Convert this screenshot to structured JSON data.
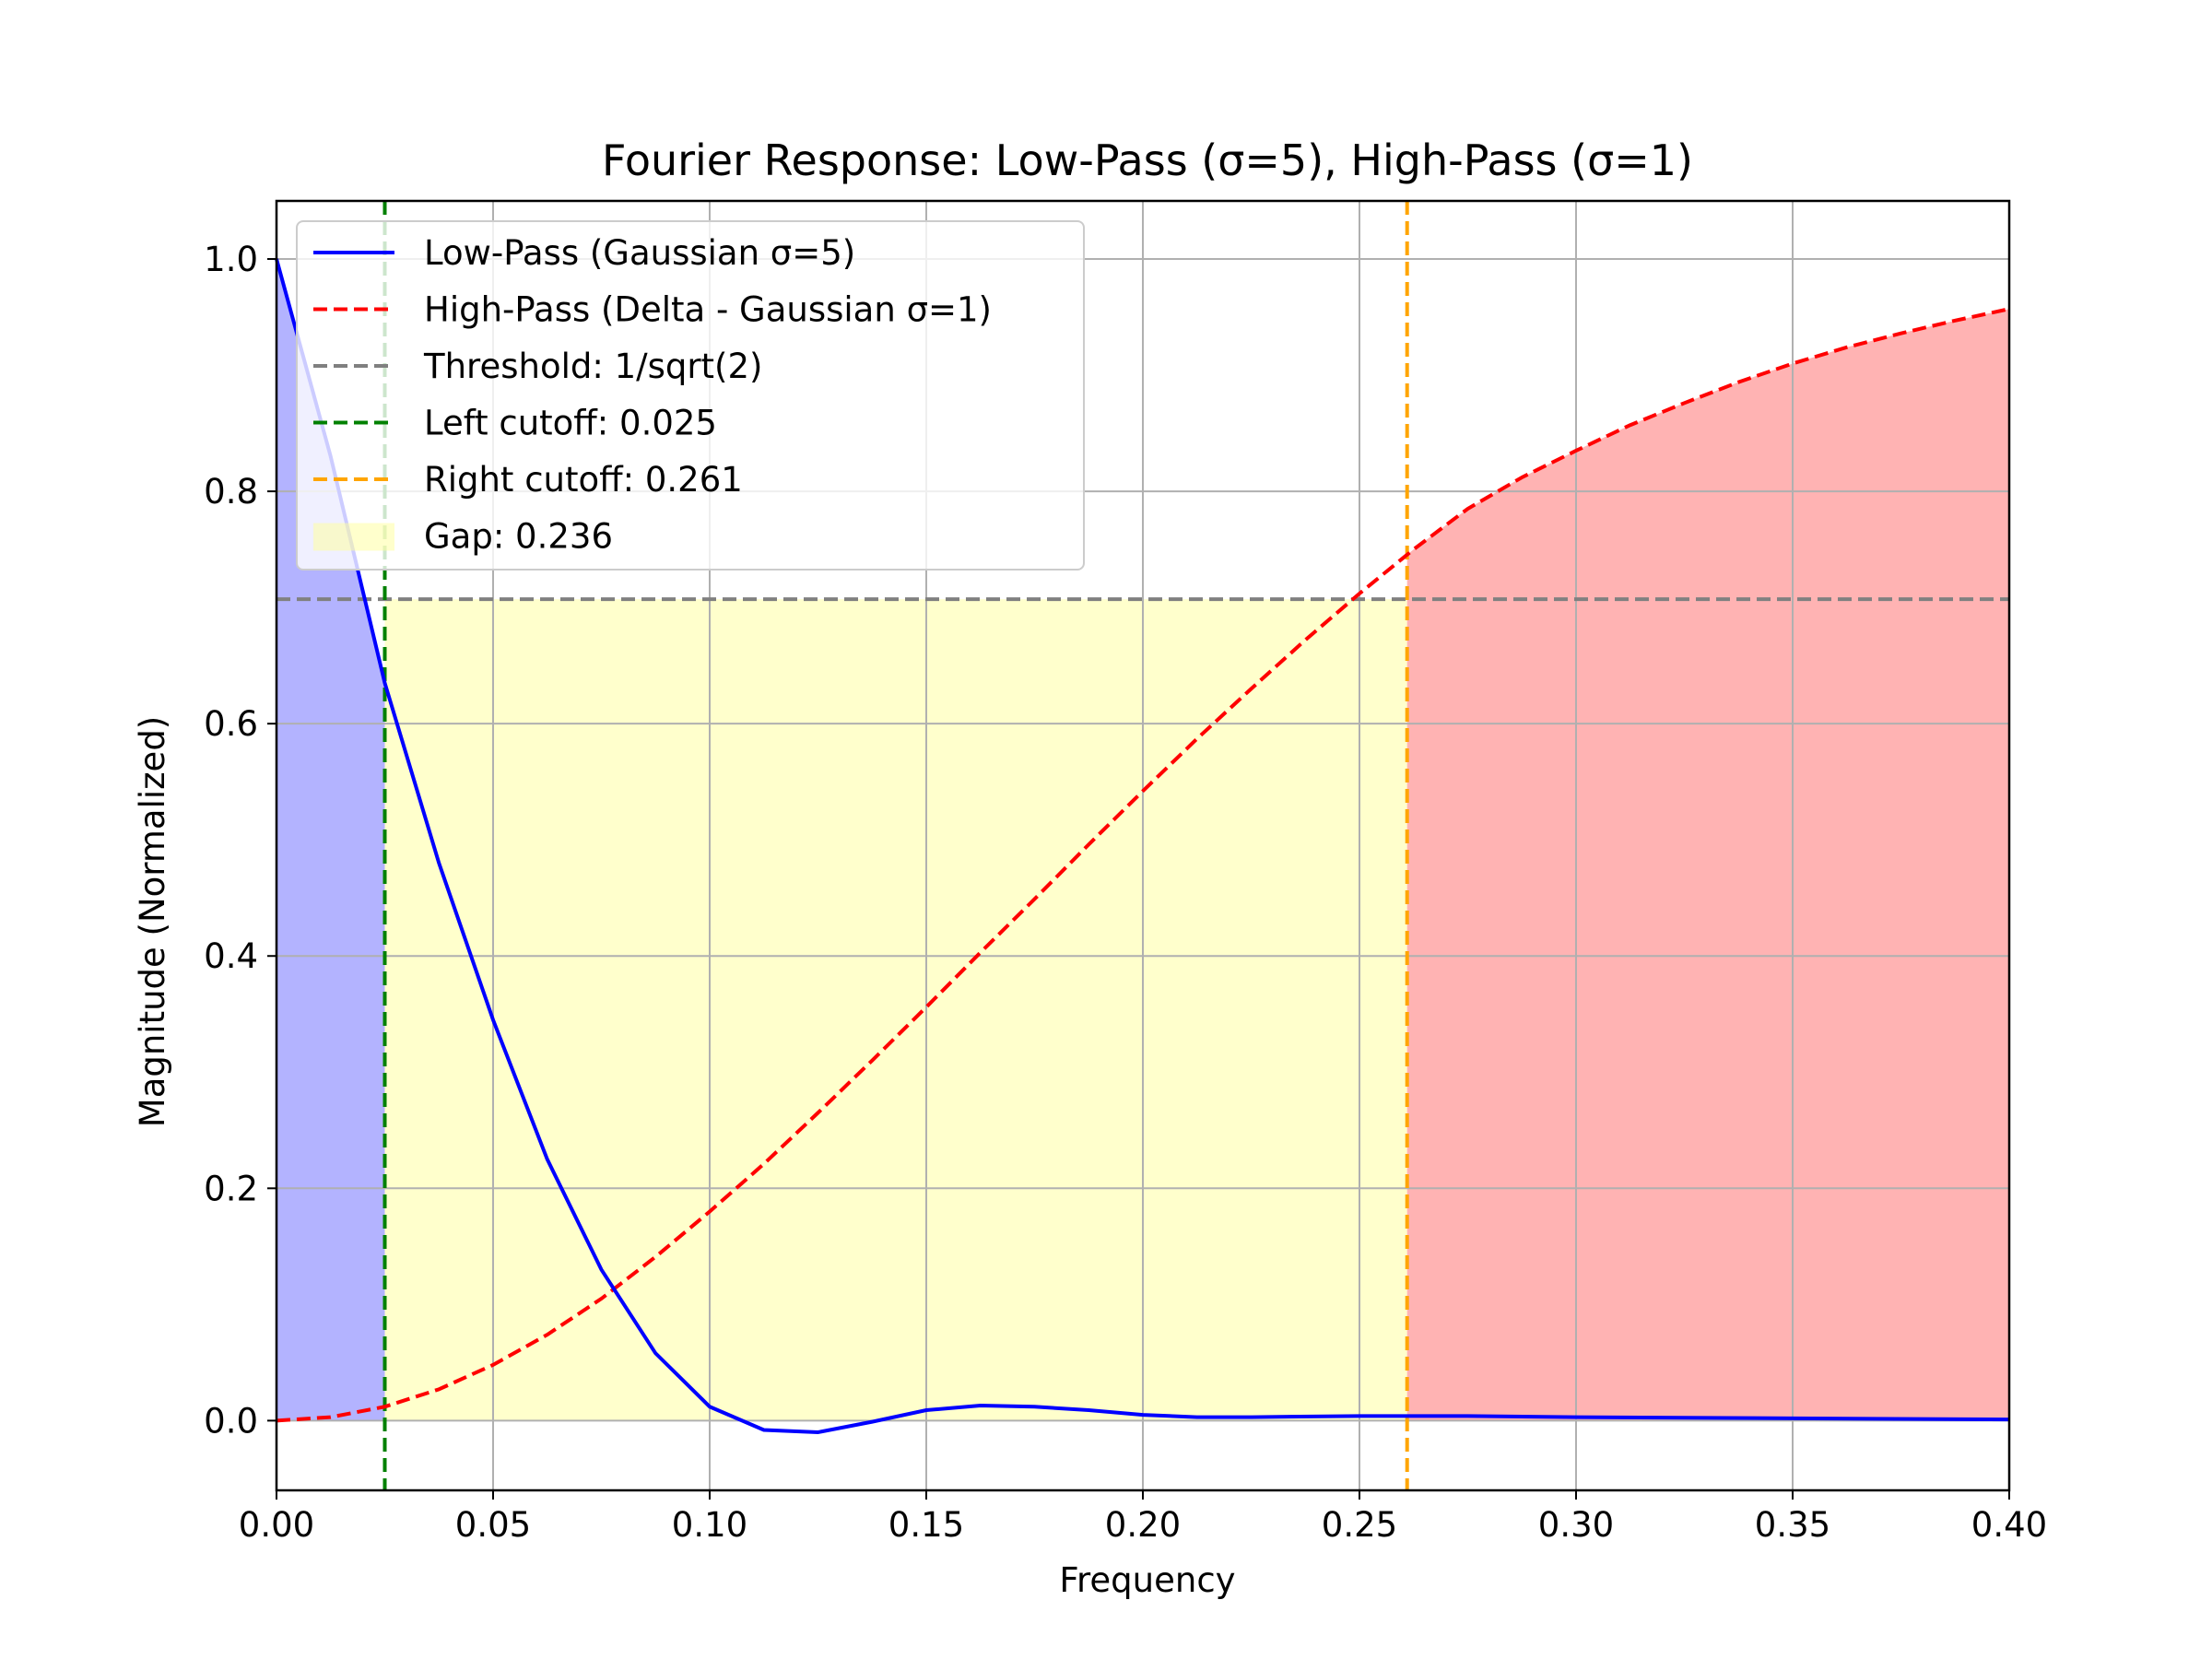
{
  "chart_data": {
    "type": "line",
    "title": "Fourier Response: Low-Pass (σ=5), High-Pass (σ=1)",
    "xlabel": "Frequency",
    "ylabel": "Magnitude (Normalized)",
    "xlim": [
      0.0,
      0.4
    ],
    "ylim": [
      -0.06,
      1.05
    ],
    "x_ticks": [
      "0.00",
      "0.05",
      "0.10",
      "0.15",
      "0.20",
      "0.25",
      "0.30",
      "0.35",
      "0.40"
    ],
    "y_ticks": [
      "0.0",
      "0.2",
      "0.4",
      "0.6",
      "0.8",
      "1.0"
    ],
    "grid": true,
    "legend_placement": "upper-left",
    "series": [
      {
        "name": "Low-Pass (Gaussian σ=5)",
        "style": "solid",
        "color": "#0000ff",
        "x": [
          0.0,
          0.0125,
          0.025,
          0.0375,
          0.05,
          0.0625,
          0.075,
          0.0875,
          0.1,
          0.1125,
          0.125,
          0.1375,
          0.15,
          0.1625,
          0.175,
          0.1875,
          0.2,
          0.2125,
          0.225,
          0.25,
          0.275,
          0.3,
          0.35,
          0.4
        ],
        "y": [
          1.0,
          0.83,
          0.635,
          0.48,
          0.345,
          0.225,
          0.13,
          0.058,
          0.012,
          -0.008,
          -0.01,
          -0.001,
          0.009,
          0.013,
          0.012,
          0.009,
          0.005,
          0.003,
          0.003,
          0.004,
          0.004,
          0.003,
          0.002,
          0.001
        ]
      },
      {
        "name": "High-Pass (Delta - Gaussian σ=1)",
        "style": "dashed",
        "color": "#ff0000",
        "x": [
          0.0,
          0.0125,
          0.025,
          0.0375,
          0.05,
          0.0625,
          0.075,
          0.0875,
          0.1,
          0.1125,
          0.125,
          0.1375,
          0.15,
          0.1625,
          0.175,
          0.1875,
          0.2,
          0.2125,
          0.225,
          0.2375,
          0.25,
          0.2625,
          0.275,
          0.2875,
          0.3,
          0.3125,
          0.325,
          0.3375,
          0.35,
          0.3625,
          0.375,
          0.3875,
          0.4
        ],
        "y": [
          0.0,
          0.003,
          0.012,
          0.027,
          0.048,
          0.074,
          0.105,
          0.141,
          0.18,
          0.221,
          0.265,
          0.31,
          0.356,
          0.403,
          0.449,
          0.496,
          0.542,
          0.587,
          0.63,
          0.672,
          0.712,
          0.75,
          0.785,
          0.812,
          0.835,
          0.857,
          0.876,
          0.894,
          0.91,
          0.924,
          0.936,
          0.947,
          0.957
        ]
      },
      {
        "name": "Threshold: 1/sqrt(2)",
        "style": "dashed",
        "color": "#808080",
        "y_constant": 0.7071
      },
      {
        "name": "Left cutoff: 0.025",
        "style": "dashed",
        "color": "#008000",
        "x_constant": 0.025
      },
      {
        "name": "Right cutoff: 0.261",
        "style": "dashed",
        "color": "#ffa500",
        "x_constant": 0.261
      },
      {
        "name": "Gap: 0.236",
        "style": "fill",
        "color": "#ffff99",
        "x_range": [
          0.025,
          0.261
        ],
        "y_range": [
          0.0,
          0.7071
        ]
      }
    ],
    "fills": {
      "low_pass_region": {
        "color": "#b3b3ff",
        "x_range": [
          0.0,
          0.025
        ]
      },
      "high_pass_region": {
        "color": "#ffb3b3",
        "x_range": [
          0.261,
          0.4
        ]
      }
    }
  }
}
